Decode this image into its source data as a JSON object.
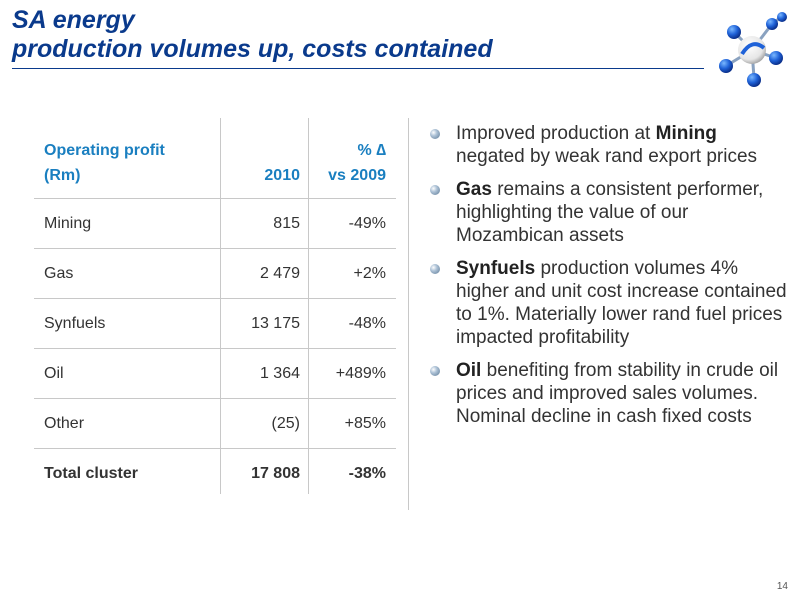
{
  "title": {
    "line1": "SA energy",
    "line2": "production volumes up, costs contained"
  },
  "colors": {
    "title": "#0a3a8c",
    "header": "#1a7fc0",
    "text": "#333333",
    "rule": "#c8c8c8"
  },
  "logo": {
    "icon": "molecule-logo-icon"
  },
  "table": {
    "headers": {
      "col1_line1": "Operating profit",
      "col1_line2": "(Rm)",
      "col2": "2010",
      "col3_line1": "% ∆",
      "col3_line2": "vs 2009"
    },
    "rows": [
      {
        "name": "Mining",
        "value": "815",
        "change": "-49%"
      },
      {
        "name": "Gas",
        "value": "2 479",
        "change": "+2%"
      },
      {
        "name": "Synfuels",
        "value": "13 175",
        "change": "-48%"
      },
      {
        "name": "Oil",
        "value": "1 364",
        "change": "+489%"
      },
      {
        "name": "Other",
        "value": "(25)",
        "change": "+85%"
      }
    ],
    "total": {
      "name": "Total cluster",
      "value": "17 808",
      "change": "-38%"
    }
  },
  "bullets": [
    {
      "pre": "Improved production at ",
      "bold": "Mining",
      "post": " negated by weak rand export prices"
    },
    {
      "pre": "",
      "bold": "Gas",
      "post": " remains a consistent performer, highlighting the value of our Mozambican assets"
    },
    {
      "pre": "",
      "bold": "Synfuels",
      "post": " production volumes 4% higher and unit cost increase contained to 1%. Materially lower rand fuel prices impacted profitability"
    },
    {
      "pre": "",
      "bold": "Oil",
      "post": " benefiting from stability in crude oil prices and improved sales volumes. Nominal decline in cash fixed costs"
    }
  ],
  "page_number": "14"
}
